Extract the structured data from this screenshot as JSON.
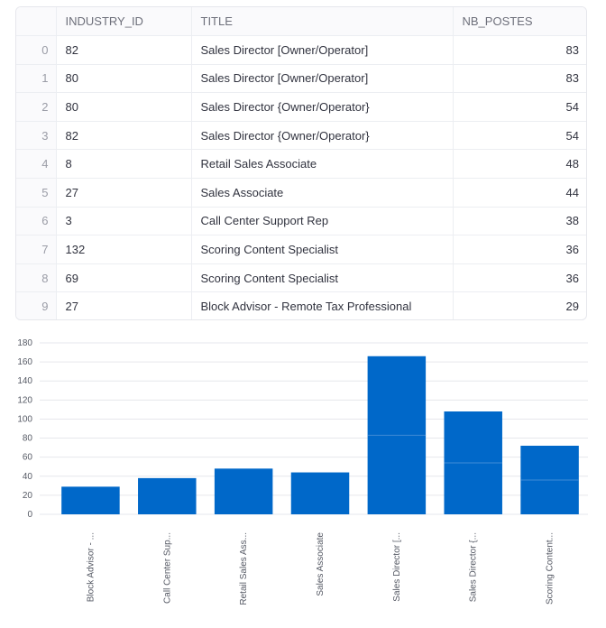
{
  "table": {
    "columns": [
      "",
      "INDUSTRY_ID",
      "TITLE",
      "NB_POSTES"
    ],
    "rows": [
      {
        "idx": "0",
        "industry_id": "82",
        "title": "Sales Director [Owner/Operator]",
        "nb_postes": "83"
      },
      {
        "idx": "1",
        "industry_id": "80",
        "title": "Sales Director [Owner/Operator]",
        "nb_postes": "83"
      },
      {
        "idx": "2",
        "industry_id": "80",
        "title": "Sales Director {Owner/Operator}",
        "nb_postes": "54"
      },
      {
        "idx": "3",
        "industry_id": "82",
        "title": "Sales Director {Owner/Operator}",
        "nb_postes": "54"
      },
      {
        "idx": "4",
        "industry_id": "8",
        "title": "Retail Sales Associate",
        "nb_postes": "48"
      },
      {
        "idx": "5",
        "industry_id": "27",
        "title": "Sales Associate",
        "nb_postes": "44"
      },
      {
        "idx": "6",
        "industry_id": "3",
        "title": "Call Center Support Rep",
        "nb_postes": "38"
      },
      {
        "idx": "7",
        "industry_id": "132",
        "title": "Scoring Content Specialist",
        "nb_postes": "36"
      },
      {
        "idx": "8",
        "industry_id": "69",
        "title": "Scoring Content Specialist",
        "nb_postes": "36"
      },
      {
        "idx": "9",
        "industry_id": "27",
        "title": "Block Advisor - Remote Tax Professional",
        "nb_postes": "29"
      }
    ]
  },
  "colors": {
    "bar": "#0068c9",
    "segment_line": "#3f8bd6",
    "grid": "#e6e7ec"
  },
  "chart_data": {
    "type": "bar",
    "stacked": true,
    "categories": [
      "Block Advisor - ...",
      "Call Center Sup...",
      "Retail Sales Ass...",
      "Sales Associate",
      "Sales Director [...",
      "Sales Director {...",
      "Scoring Content..."
    ],
    "segments": [
      [
        29
      ],
      [
        38
      ],
      [
        48
      ],
      [
        44
      ],
      [
        83,
        83
      ],
      [
        54,
        54
      ],
      [
        36,
        36
      ]
    ],
    "values": [
      29,
      38,
      48,
      44,
      166,
      108,
      72
    ],
    "yticks": [
      0,
      20,
      40,
      60,
      80,
      100,
      120,
      140,
      160,
      180
    ],
    "ylim": [
      0,
      180
    ],
    "grid": true,
    "xlabel": "",
    "ylabel": ""
  }
}
